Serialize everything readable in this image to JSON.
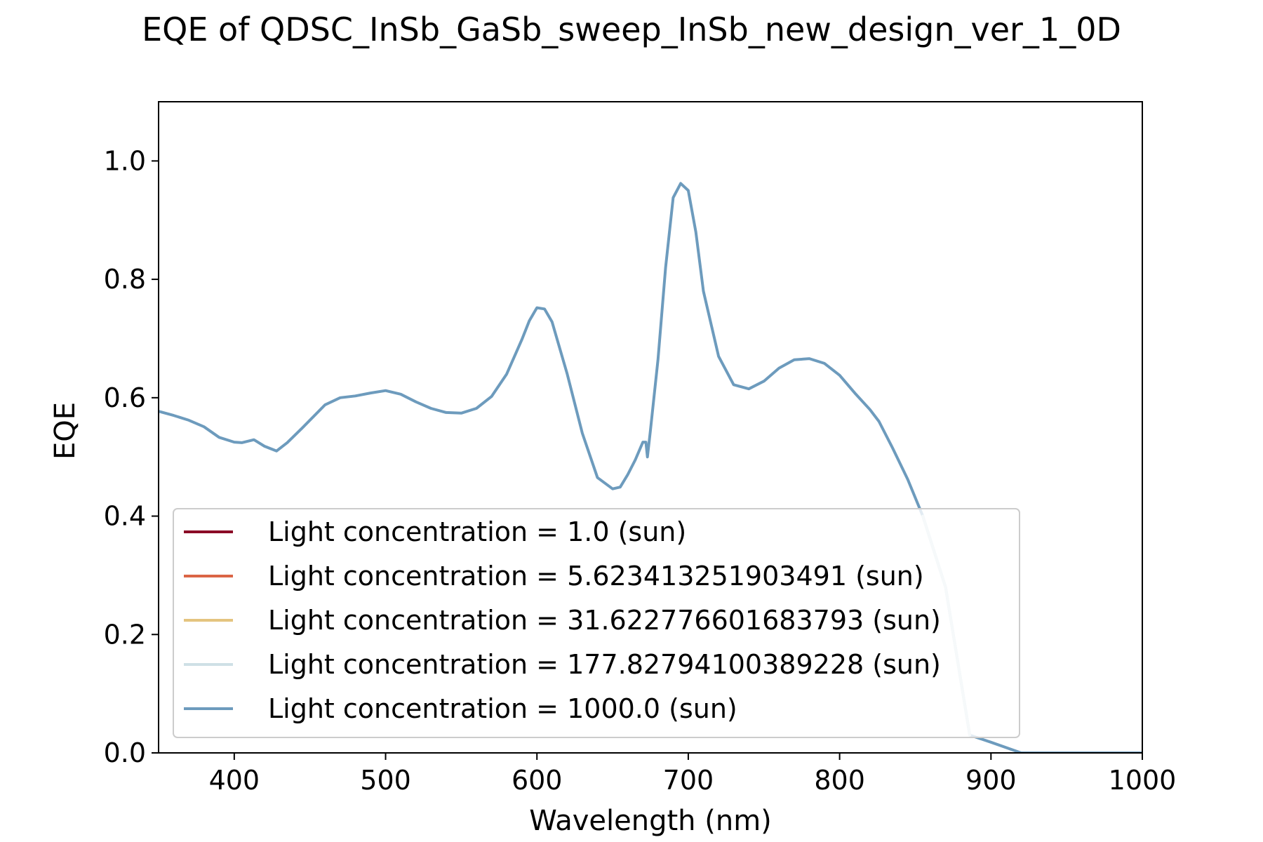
{
  "chart_data": {
    "type": "line",
    "title": "EQE of  QDSC_InSb_GaSb_sweep_InSb_new_design_ver_1_0D",
    "xlabel": "Wavelength (nm)",
    "ylabel": "EQE",
    "xlim": [
      350,
      1000
    ],
    "ylim": [
      0,
      1.1
    ],
    "xticks": [
      400,
      500,
      600,
      700,
      800,
      900,
      1000
    ],
    "yticks": [
      0.0,
      0.2,
      0.4,
      0.6,
      0.8,
      1.0
    ],
    "xtick_labels": [
      "400",
      "500",
      "600",
      "700",
      "800",
      "900",
      "1000"
    ],
    "ytick_labels": [
      "0.0",
      "0.2",
      "0.4",
      "0.6",
      "0.8",
      "1.0"
    ],
    "grid": false,
    "legend_position": "lower-left",
    "x": [
      350,
      360,
      370,
      380,
      390,
      400,
      405,
      413,
      420,
      428,
      435,
      445,
      460,
      470,
      480,
      490,
      500,
      510,
      520,
      530,
      540,
      550,
      560,
      570,
      580,
      590,
      595,
      600,
      605,
      610,
      620,
      630,
      640,
      650,
      655,
      660,
      665,
      670,
      672,
      673,
      675,
      680,
      685,
      690,
      695,
      700,
      705,
      710,
      720,
      730,
      740,
      750,
      760,
      770,
      780,
      790,
      800,
      810,
      820,
      826,
      835,
      845,
      855,
      870,
      886,
      900,
      920,
      950,
      1000
    ],
    "series": [
      {
        "name": "Light concentration = 1.0 (sun)",
        "color": "#8b0a26"
      },
      {
        "name": "Light concentration = 5.623413251903491 (sun)",
        "color": "#db6546"
      },
      {
        "name": "Light concentration = 31.622776601683793 (sun)",
        "color": "#e4c47f"
      },
      {
        "name": "Light concentration = 177.82794100389228 (sun)",
        "color": "#cfe0e6"
      },
      {
        "name": "Light concentration = 1000.0 (sun)",
        "color": "#6d9bbd",
        "values": [
          0.577,
          0.57,
          0.562,
          0.551,
          0.533,
          0.525,
          0.524,
          0.529,
          0.518,
          0.51,
          0.524,
          0.549,
          0.588,
          0.6,
          0.603,
          0.608,
          0.612,
          0.606,
          0.593,
          0.582,
          0.575,
          0.574,
          0.582,
          0.602,
          0.64,
          0.698,
          0.73,
          0.752,
          0.75,
          0.728,
          0.64,
          0.54,
          0.465,
          0.446,
          0.449,
          0.47,
          0.495,
          0.525,
          0.525,
          0.5,
          0.545,
          0.665,
          0.82,
          0.938,
          0.962,
          0.95,
          0.88,
          0.78,
          0.67,
          0.622,
          0.615,
          0.628,
          0.65,
          0.664,
          0.666,
          0.658,
          0.638,
          0.608,
          0.58,
          0.56,
          0.515,
          0.462,
          0.4,
          0.28,
          0.03,
          0.018,
          0.0,
          0.0,
          0.0
        ]
      }
    ]
  }
}
